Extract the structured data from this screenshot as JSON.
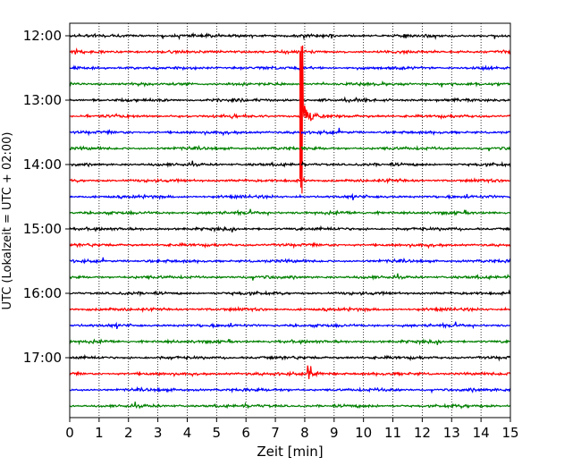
{
  "chart_data": {
    "type": "line",
    "title": "",
    "xlabel": "Zeit  [min]",
    "ylabel": "UTC (Lokalzeit = UTC + 02:00)",
    "xlim": [
      0,
      15
    ],
    "x_ticks": [
      "0",
      "1",
      "2",
      "3",
      "4",
      "5",
      "6",
      "7",
      "8",
      "9",
      "10",
      "11",
      "12",
      "13",
      "14",
      "15"
    ],
    "y_tick_labels": [
      "12:00",
      "13:00",
      "14:00",
      "15:00",
      "16:00",
      "17:00"
    ],
    "grid": "vertical dotted",
    "trace_start_utc": "12:00",
    "trace_interval_min": 15,
    "trace_count": 24,
    "colors": [
      "#000000",
      "#ff0000",
      "#0000ff",
      "#008000"
    ],
    "events": [
      {
        "trace_start": "13:15",
        "time_min": 7.85,
        "description": "large earthquake signal, high-amplitude red trace with long coda"
      },
      {
        "trace_start": "17:15",
        "time_min": 8.1,
        "description": "small earthquake signal on red trace"
      }
    ]
  }
}
